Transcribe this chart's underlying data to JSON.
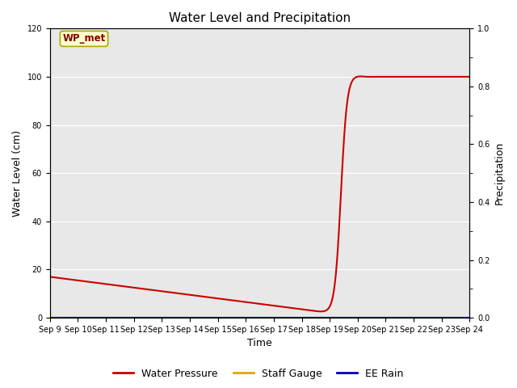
{
  "title": "Water Level and Precipitation",
  "xlabel": "Time",
  "ylabel_left": "Water Level (cm)",
  "ylabel_right": "Precipitation",
  "ylim_left": [
    0,
    120
  ],
  "ylim_right": [
    0,
    1.0
  ],
  "yticks_left": [
    0,
    20,
    40,
    60,
    80,
    100,
    120
  ],
  "yticks_right": [
    0.0,
    0.2,
    0.4,
    0.6,
    0.8,
    1.0
  ],
  "xtick_labels": [
    "Sep 9",
    "Sep 10",
    "Sep 11",
    "Sep 12",
    "Sep 13",
    "Sep 14",
    "Sep 15",
    "Sep 16",
    "Sep 17",
    "Sep 18",
    "Sep 19",
    "Sep 20",
    "Sep 21",
    "Sep 22",
    "Sep 23",
    "Sep 24"
  ],
  "wp_color": "#cc0000",
  "staff_color": "#ddaa00",
  "rain_color": "#0000bb",
  "legend_labels": [
    "Water Pressure",
    "Staff Gauge",
    "EE Rain"
  ],
  "annotation_text": "WP_met",
  "annotation_box_facecolor": "#ffffcc",
  "annotation_box_edgecolor": "#aaa800",
  "annotation_text_color": "#880000",
  "background_color": "#e8e8e8",
  "fig_background": "#ffffff",
  "line_width": 1.5
}
